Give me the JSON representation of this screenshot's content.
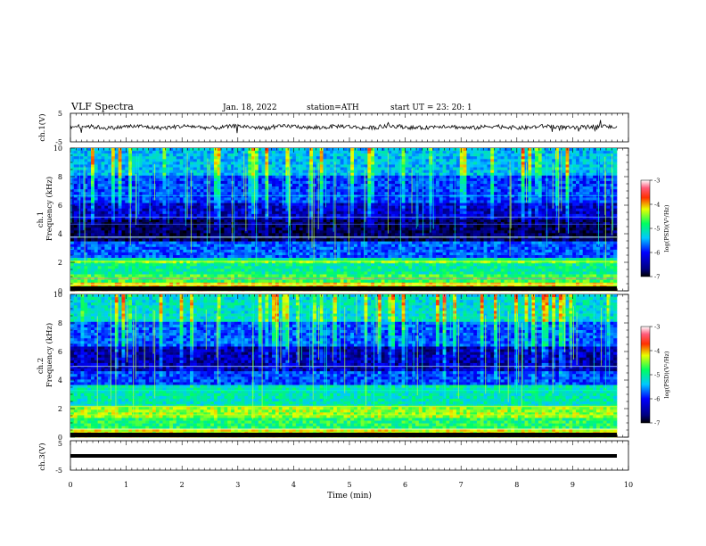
{
  "header": {
    "title": "VLF  Spectra",
    "date": "Jan. 18, 2022",
    "station": "station=ATH",
    "start": "start  UT  =   23: 20: 1"
  },
  "chart_data": {
    "type": "heatmap",
    "x": {
      "label": "Time  (min)",
      "ticks": [
        "0",
        "1",
        "2",
        "3",
        "4",
        "5",
        "6",
        "7",
        "8",
        "9",
        "10"
      ],
      "range": [
        0,
        10
      ]
    },
    "panels": [
      {
        "id": "ch1-waveform",
        "type": "line",
        "ylabel": "ch.1(V)",
        "ytick_labels": [
          "5",
          "-5"
        ],
        "ylim": [
          -5,
          5
        ]
      },
      {
        "id": "ch1-spectrogram",
        "type": "heatmap",
        "ylabel": "Frequency  (kHz)",
        "ylabel_channel": "ch.1",
        "ytick_labels": [
          "0",
          "2",
          "4",
          "6",
          "8",
          "10"
        ],
        "ylim": [
          0,
          10
        ],
        "colorbar": {
          "label": "log(PSD)(V²/Hz)",
          "ticks": [
            "-3",
            "-4",
            "-5",
            "-6",
            "-7"
          ],
          "range": [
            -7,
            -3
          ]
        }
      },
      {
        "id": "ch2-spectrogram",
        "type": "heatmap",
        "ylabel": "Frequency  (kHz)",
        "ylabel_channel": "ch.2",
        "ytick_labels": [
          "0",
          "2",
          "4",
          "6",
          "8",
          "10"
        ],
        "ylim": [
          0,
          10
        ],
        "colorbar": {
          "label": "log(PSD)(V²/Hz)",
          "ticks": [
            "-3",
            "-4",
            "-5",
            "-6",
            "-7"
          ],
          "range": [
            -7,
            -3
          ]
        }
      },
      {
        "id": "ch3-waveform",
        "type": "line",
        "ylabel": "ch.3(V)",
        "ytick_labels": [
          "5",
          "-5"
        ],
        "ylim": [
          -5,
          5
        ]
      }
    ]
  }
}
